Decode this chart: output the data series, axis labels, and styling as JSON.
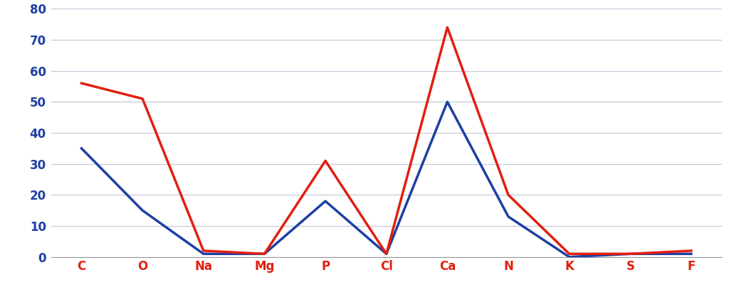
{
  "categories": [
    "C",
    "O",
    "Na",
    "Mg",
    "P",
    "Cl",
    "Ca",
    "N",
    "K",
    "S",
    "F"
  ],
  "blue_values": [
    35,
    15,
    1,
    1,
    18,
    1,
    50,
    13,
    0,
    1,
    1
  ],
  "red_values": [
    56,
    51,
    2,
    1,
    31,
    1,
    74,
    20,
    1,
    1,
    2
  ],
  "blue_color": "#1e3fa3",
  "red_color": "#e02010",
  "ylim": [
    0,
    80
  ],
  "yticks": [
    0,
    10,
    20,
    30,
    40,
    50,
    60,
    70,
    80
  ],
  "line_width": 2.5,
  "background_color": "#ffffff",
  "grid_color": "#c8c8dc",
  "tick_fontsize": 12,
  "ylabel_color": "#3030c0",
  "xlabel_color": "#e02010"
}
